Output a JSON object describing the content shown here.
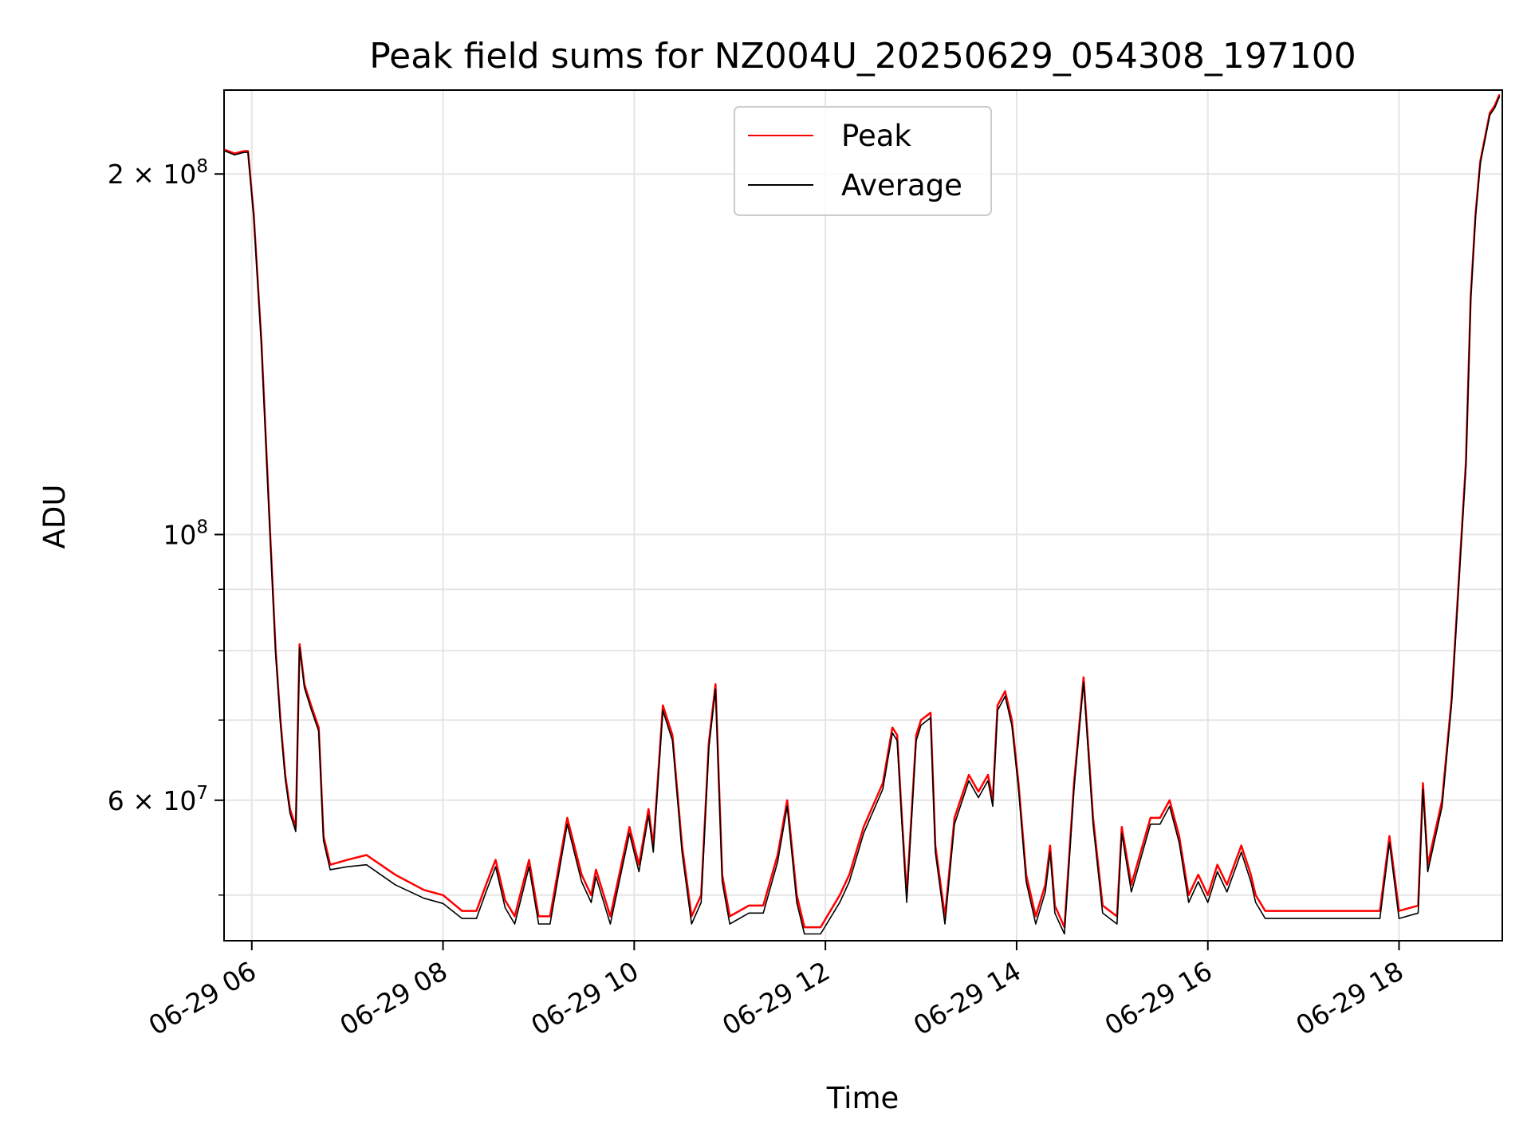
{
  "chart_data": {
    "type": "line",
    "title": "Peak field sums for NZ004U_20250629_054308_197100",
    "xlabel": "Time",
    "ylabel": "ADU",
    "x_unit": "hours (2025-06-29, clock time)",
    "xlim": [
      5.71,
      19.08
    ],
    "ylim": [
      45800000,
      235000000
    ],
    "yscale": "log",
    "grid": true,
    "legend_position": "upper center",
    "x_ticks": [
      {
        "value": 6,
        "label": "06-29 06"
      },
      {
        "value": 8,
        "label": "06-29 08"
      },
      {
        "value": 10,
        "label": "06-29 10"
      },
      {
        "value": 12,
        "label": "06-29 12"
      },
      {
        "value": 14,
        "label": "06-29 14"
      },
      {
        "value": 16,
        "label": "06-29 16"
      },
      {
        "value": 18,
        "label": "06-29 18"
      }
    ],
    "y_ticks": [
      {
        "value": 60000000,
        "mantissa": "6",
        "exponent": "7"
      },
      {
        "value": 100000000,
        "mantissa": "",
        "exponent": "8"
      },
      {
        "value": 200000000,
        "mantissa": "2",
        "exponent": "8"
      }
    ],
    "y_minor_gridlines": [
      50000000,
      70000000,
      80000000,
      90000000
    ],
    "colors": {
      "peak": "#ff0000",
      "average": "#000000",
      "grid": "#e5e5e5"
    },
    "series": [
      {
        "name": "Peak",
        "color": "#ff0000",
        "points": [
          [
            5.72,
            209500000
          ],
          [
            5.82,
            208000000
          ],
          [
            5.92,
            209000000
          ],
          [
            5.96,
            209000000
          ],
          [
            6.02,
            185000000
          ],
          [
            6.1,
            145000000
          ],
          [
            6.18,
            105000000
          ],
          [
            6.25,
            80000000
          ],
          [
            6.3,
            70000000
          ],
          [
            6.35,
            63000000
          ],
          [
            6.4,
            59000000
          ],
          [
            6.46,
            57000000
          ],
          [
            6.5,
            81000000
          ],
          [
            6.55,
            75000000
          ],
          [
            6.62,
            72000000
          ],
          [
            6.7,
            69000000
          ],
          [
            6.75,
            56000000
          ],
          [
            6.82,
            53000000
          ],
          [
            7.0,
            53500000
          ],
          [
            7.2,
            54000000
          ],
          [
            7.5,
            52000000
          ],
          [
            7.8,
            50500000
          ],
          [
            8.0,
            50000000
          ],
          [
            8.2,
            48500000
          ],
          [
            8.35,
            48500000
          ],
          [
            8.45,
            51000000
          ],
          [
            8.55,
            53500000
          ],
          [
            8.65,
            49500000
          ],
          [
            8.75,
            48000000
          ],
          [
            8.9,
            53500000
          ],
          [
            9.0,
            48000000
          ],
          [
            9.12,
            48000000
          ],
          [
            9.3,
            58000000
          ],
          [
            9.45,
            52000000
          ],
          [
            9.55,
            50000000
          ],
          [
            9.6,
            52500000
          ],
          [
            9.75,
            48000000
          ],
          [
            9.95,
            57000000
          ],
          [
            10.05,
            53000000
          ],
          [
            10.15,
            59000000
          ],
          [
            10.2,
            55000000
          ],
          [
            10.3,
            72000000
          ],
          [
            10.4,
            68000000
          ],
          [
            10.5,
            55000000
          ],
          [
            10.6,
            48000000
          ],
          [
            10.7,
            50000000
          ],
          [
            10.78,
            67000000
          ],
          [
            10.85,
            75000000
          ],
          [
            10.92,
            52000000
          ],
          [
            11.0,
            48000000
          ],
          [
            11.2,
            49000000
          ],
          [
            11.35,
            49000000
          ],
          [
            11.5,
            54000000
          ],
          [
            11.6,
            60000000
          ],
          [
            11.7,
            50000000
          ],
          [
            11.78,
            47000000
          ],
          [
            11.95,
            47000000
          ],
          [
            12.15,
            50000000
          ],
          [
            12.25,
            52000000
          ],
          [
            12.4,
            57000000
          ],
          [
            12.6,
            62000000
          ],
          [
            12.7,
            69000000
          ],
          [
            12.75,
            68000000
          ],
          [
            12.8,
            58000000
          ],
          [
            12.85,
            50000000
          ],
          [
            12.95,
            68000000
          ],
          [
            13.0,
            70000000
          ],
          [
            13.1,
            71000000
          ],
          [
            13.15,
            55000000
          ],
          [
            13.25,
            48000000
          ],
          [
            13.35,
            58000000
          ],
          [
            13.5,
            63000000
          ],
          [
            13.6,
            61000000
          ],
          [
            13.7,
            63000000
          ],
          [
            13.75,
            60000000
          ],
          [
            13.8,
            72000000
          ],
          [
            13.88,
            74000000
          ],
          [
            13.95,
            70000000
          ],
          [
            14.02,
            62000000
          ],
          [
            14.1,
            52000000
          ],
          [
            14.2,
            48000000
          ],
          [
            14.3,
            51000000
          ],
          [
            14.35,
            55000000
          ],
          [
            14.4,
            49000000
          ],
          [
            14.5,
            47000000
          ],
          [
            14.6,
            62000000
          ],
          [
            14.7,
            76000000
          ],
          [
            14.8,
            58000000
          ],
          [
            14.9,
            49000000
          ],
          [
            15.05,
            48000000
          ],
          [
            15.1,
            57000000
          ],
          [
            15.2,
            51000000
          ],
          [
            15.4,
            58000000
          ],
          [
            15.5,
            58000000
          ],
          [
            15.6,
            60000000
          ],
          [
            15.7,
            56000000
          ],
          [
            15.8,
            50000000
          ],
          [
            15.9,
            52000000
          ],
          [
            16.0,
            50000000
          ],
          [
            16.1,
            53000000
          ],
          [
            16.2,
            51000000
          ],
          [
            16.35,
            55000000
          ],
          [
            16.45,
            52000000
          ],
          [
            16.5,
            50000000
          ],
          [
            16.6,
            48500000
          ],
          [
            16.8,
            48500000
          ],
          [
            17.2,
            48500000
          ],
          [
            17.6,
            48500000
          ],
          [
            17.8,
            48500000
          ],
          [
            17.9,
            56000000
          ],
          [
            18.0,
            48500000
          ],
          [
            18.2,
            49000000
          ],
          [
            18.25,
            62000000
          ],
          [
            18.3,
            53000000
          ],
          [
            18.45,
            60000000
          ],
          [
            18.55,
            73000000
          ],
          [
            18.6,
            85000000
          ],
          [
            18.7,
            115000000
          ],
          [
            18.75,
            158000000
          ],
          [
            18.8,
            185000000
          ],
          [
            18.85,
            205000000
          ],
          [
            18.95,
            225000000
          ],
          [
            19.0,
            228000000
          ],
          [
            19.05,
            233000000
          ]
        ]
      },
      {
        "name": "Average",
        "color": "#000000",
        "points": [
          [
            5.72,
            209000000
          ],
          [
            5.82,
            207500000
          ],
          [
            5.92,
            208500000
          ],
          [
            5.96,
            208500000
          ],
          [
            6.02,
            184000000
          ],
          [
            6.1,
            144000000
          ],
          [
            6.18,
            104000000
          ],
          [
            6.25,
            79500000
          ],
          [
            6.3,
            69500000
          ],
          [
            6.35,
            62500000
          ],
          [
            6.4,
            58500000
          ],
          [
            6.46,
            56500000
          ],
          [
            6.5,
            80500000
          ],
          [
            6.55,
            74500000
          ],
          [
            6.62,
            71500000
          ],
          [
            6.7,
            68500000
          ],
          [
            6.75,
            55500000
          ],
          [
            6.82,
            52500000
          ],
          [
            7.0,
            52800000
          ],
          [
            7.2,
            53000000
          ],
          [
            7.5,
            51000000
          ],
          [
            7.8,
            49700000
          ],
          [
            8.0,
            49200000
          ],
          [
            8.2,
            47800000
          ],
          [
            8.35,
            47800000
          ],
          [
            8.45,
            50300000
          ],
          [
            8.55,
            52800000
          ],
          [
            8.65,
            48800000
          ],
          [
            8.75,
            47300000
          ],
          [
            8.9,
            52800000
          ],
          [
            9.0,
            47300000
          ],
          [
            9.12,
            47300000
          ],
          [
            9.3,
            57300000
          ],
          [
            9.45,
            51300000
          ],
          [
            9.55,
            49300000
          ],
          [
            9.6,
            51800000
          ],
          [
            9.75,
            47300000
          ],
          [
            9.95,
            56300000
          ],
          [
            10.05,
            52300000
          ],
          [
            10.15,
            58300000
          ],
          [
            10.2,
            54300000
          ],
          [
            10.3,
            71300000
          ],
          [
            10.4,
            67300000
          ],
          [
            10.5,
            54300000
          ],
          [
            10.6,
            47300000
          ],
          [
            10.7,
            49300000
          ],
          [
            10.78,
            66300000
          ],
          [
            10.85,
            74300000
          ],
          [
            10.92,
            51300000
          ],
          [
            11.0,
            47300000
          ],
          [
            11.2,
            48300000
          ],
          [
            11.35,
            48300000
          ],
          [
            11.5,
            53300000
          ],
          [
            11.6,
            59300000
          ],
          [
            11.7,
            49300000
          ],
          [
            11.78,
            46400000
          ],
          [
            11.95,
            46400000
          ],
          [
            12.15,
            49300000
          ],
          [
            12.25,
            51300000
          ],
          [
            12.4,
            56300000
          ],
          [
            12.6,
            61300000
          ],
          [
            12.7,
            68300000
          ],
          [
            12.75,
            67300000
          ],
          [
            12.8,
            57300000
          ],
          [
            12.85,
            49300000
          ],
          [
            12.95,
            67300000
          ],
          [
            13.0,
            69300000
          ],
          [
            13.1,
            70300000
          ],
          [
            13.15,
            54300000
          ],
          [
            13.25,
            47300000
          ],
          [
            13.35,
            57300000
          ],
          [
            13.5,
            62300000
          ],
          [
            13.6,
            60300000
          ],
          [
            13.7,
            62300000
          ],
          [
            13.75,
            59300000
          ],
          [
            13.8,
            71300000
          ],
          [
            13.88,
            73300000
          ],
          [
            13.95,
            69300000
          ],
          [
            14.02,
            61300000
          ],
          [
            14.1,
            51300000
          ],
          [
            14.2,
            47300000
          ],
          [
            14.3,
            50300000
          ],
          [
            14.35,
            54300000
          ],
          [
            14.4,
            48300000
          ],
          [
            14.5,
            46400000
          ],
          [
            14.6,
            61300000
          ],
          [
            14.7,
            75300000
          ],
          [
            14.8,
            57300000
          ],
          [
            14.9,
            48300000
          ],
          [
            15.05,
            47300000
          ],
          [
            15.1,
            56300000
          ],
          [
            15.2,
            50300000
          ],
          [
            15.4,
            57300000
          ],
          [
            15.5,
            57300000
          ],
          [
            15.6,
            59300000
          ],
          [
            15.7,
            55300000
          ],
          [
            15.8,
            49300000
          ],
          [
            15.9,
            51300000
          ],
          [
            16.0,
            49300000
          ],
          [
            16.1,
            52300000
          ],
          [
            16.2,
            50300000
          ],
          [
            16.35,
            54300000
          ],
          [
            16.45,
            51300000
          ],
          [
            16.5,
            49300000
          ],
          [
            16.6,
            47800000
          ],
          [
            16.8,
            47800000
          ],
          [
            17.2,
            47800000
          ],
          [
            17.6,
            47800000
          ],
          [
            17.8,
            47800000
          ],
          [
            17.9,
            55300000
          ],
          [
            18.0,
            47800000
          ],
          [
            18.2,
            48300000
          ],
          [
            18.25,
            61300000
          ],
          [
            18.3,
            52300000
          ],
          [
            18.45,
            59300000
          ],
          [
            18.55,
            72300000
          ],
          [
            18.6,
            84300000
          ],
          [
            18.7,
            114000000
          ],
          [
            18.75,
            157000000
          ],
          [
            18.8,
            184000000
          ],
          [
            18.85,
            204000000
          ],
          [
            18.95,
            224000000
          ],
          [
            19.0,
            227000000
          ],
          [
            19.05,
            232000000
          ]
        ]
      }
    ]
  }
}
